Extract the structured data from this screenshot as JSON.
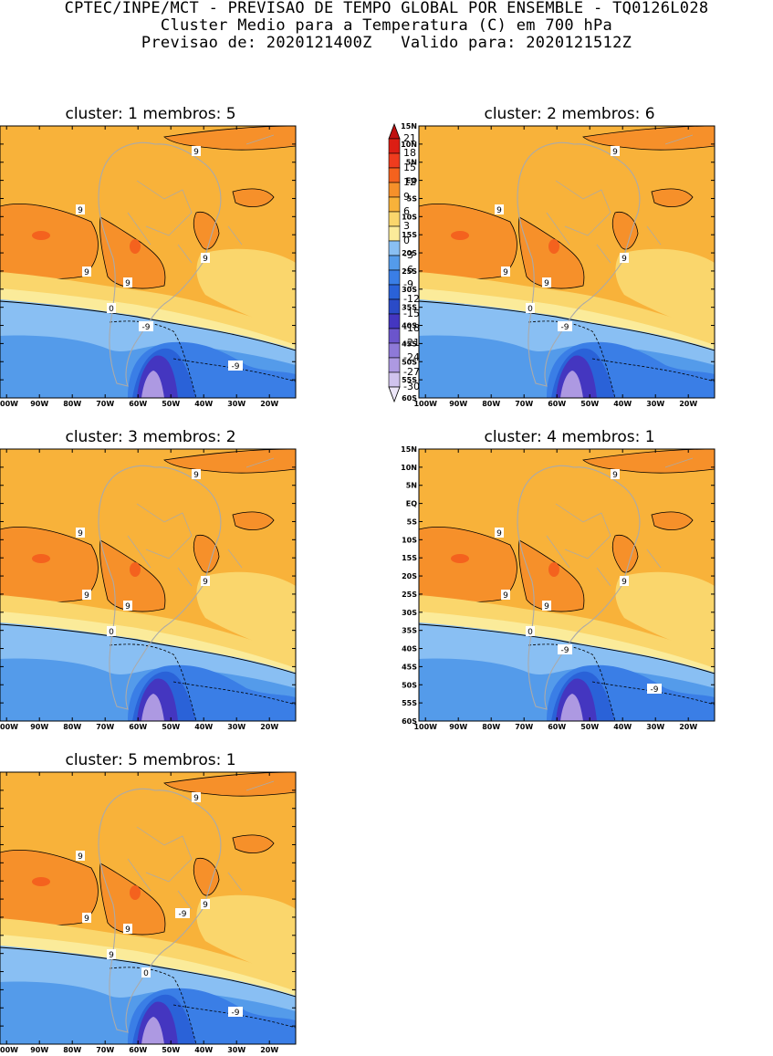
{
  "header": {
    "line1": "CPTEC/INPE/MCT - PREVISAO DE TEMPO GLOBAL POR ENSEMBLE - TQ0126L028",
    "line2": "Cluster Medio para a Temperatura (C) em 700 hPa",
    "line3": "Previsao de: 2020121400Z   Valido para: 2020121512Z"
  },
  "colorbar": {
    "labels": [
      "21",
      "18",
      "15",
      "12",
      "9",
      "6",
      "3",
      "0",
      "-3",
      "-6",
      "-9",
      "-12",
      "-15",
      "-18",
      "-21",
      "-24",
      "-27",
      "-30"
    ],
    "colors": [
      "#c01010",
      "#dc1e14",
      "#ef3c1e",
      "#f4621e",
      "#f6902a",
      "#f8b23a",
      "#fad66c",
      "#fbeb9a",
      "#89bff3",
      "#549bea",
      "#3a7ee6",
      "#2a62d8",
      "#2b4bc7",
      "#4436c0",
      "#6b55cc",
      "#8e79d8",
      "#ad99e2",
      "#d0c3ee",
      "#ece6f8"
    ]
  },
  "axes": {
    "lat_labels": [
      "15N",
      "10N",
      "5N",
      "EQ",
      "5S",
      "10S",
      "15S",
      "20S",
      "25S",
      "30S",
      "35S",
      "40S",
      "45S",
      "50S",
      "55S",
      "60S"
    ],
    "lon_labels": [
      "100W",
      "90W",
      "80W",
      "70W",
      "60W",
      "50W",
      "40W",
      "30W",
      "20W"
    ]
  },
  "panels": [
    {
      "title": "cluster: 1   membros: 5",
      "contour_labels": [
        "9",
        "9",
        "9",
        "9",
        "9",
        "0",
        "-9",
        "-9"
      ]
    },
    {
      "title": "cluster: 2   membros: 6",
      "contour_labels": [
        "9",
        "9",
        "9",
        "9",
        "9",
        "0",
        "-9"
      ]
    },
    {
      "title": "cluster: 3   membros: 2",
      "contour_labels": [
        "9",
        "9",
        "9",
        "9",
        "9",
        "0"
      ]
    },
    {
      "title": "cluster: 4   membros: 1",
      "contour_labels": [
        "9",
        "9",
        "9",
        "9",
        "9",
        "0",
        "-9",
        "-9"
      ]
    },
    {
      "title": "cluster: 5   membros: 1",
      "contour_labels": [
        "9",
        "9",
        "9",
        "9",
        "9",
        "9",
        "0",
        "-9",
        "-9"
      ]
    }
  ]
}
